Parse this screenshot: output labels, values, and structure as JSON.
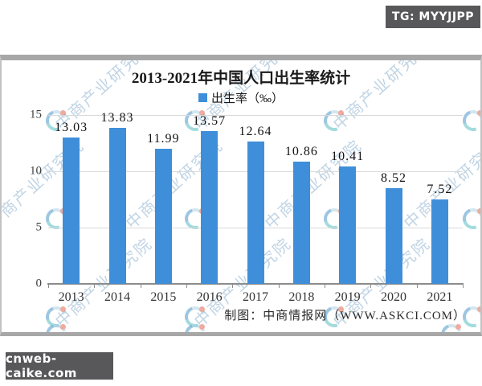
{
  "badges": {
    "top_right": "TG: MYYJJPP",
    "bottom_left": "cnweb-caike.com"
  },
  "watermark": {
    "text": "中商产业研究院",
    "logo_name": "askci-circle-logo"
  },
  "colors": {
    "bar": "#3E8EDA",
    "badge_bg": "#58585a",
    "watermark_text": "#8db1cd",
    "card_border": "#a7a7a7"
  },
  "chart_data": {
    "type": "bar",
    "title": "2013-2021年中国人口出生率统计",
    "legend": [
      "出生率（‰）"
    ],
    "legend_position": "top",
    "categories": [
      "2013",
      "2014",
      "2015",
      "2016",
      "2017",
      "2018",
      "2019",
      "2020",
      "2021"
    ],
    "series": [
      {
        "name": "出生率（‰）",
        "values": [
          13.03,
          13.83,
          11.99,
          13.57,
          12.64,
          10.86,
          10.41,
          8.52,
          7.52
        ]
      }
    ],
    "xlabel": "",
    "ylabel": "",
    "ylim": [
      0,
      15
    ],
    "yticks": [
      0,
      5,
      10,
      15
    ],
    "grid": true,
    "credit": "制图：中商情报网（WWW.ASKCI.COM）"
  }
}
